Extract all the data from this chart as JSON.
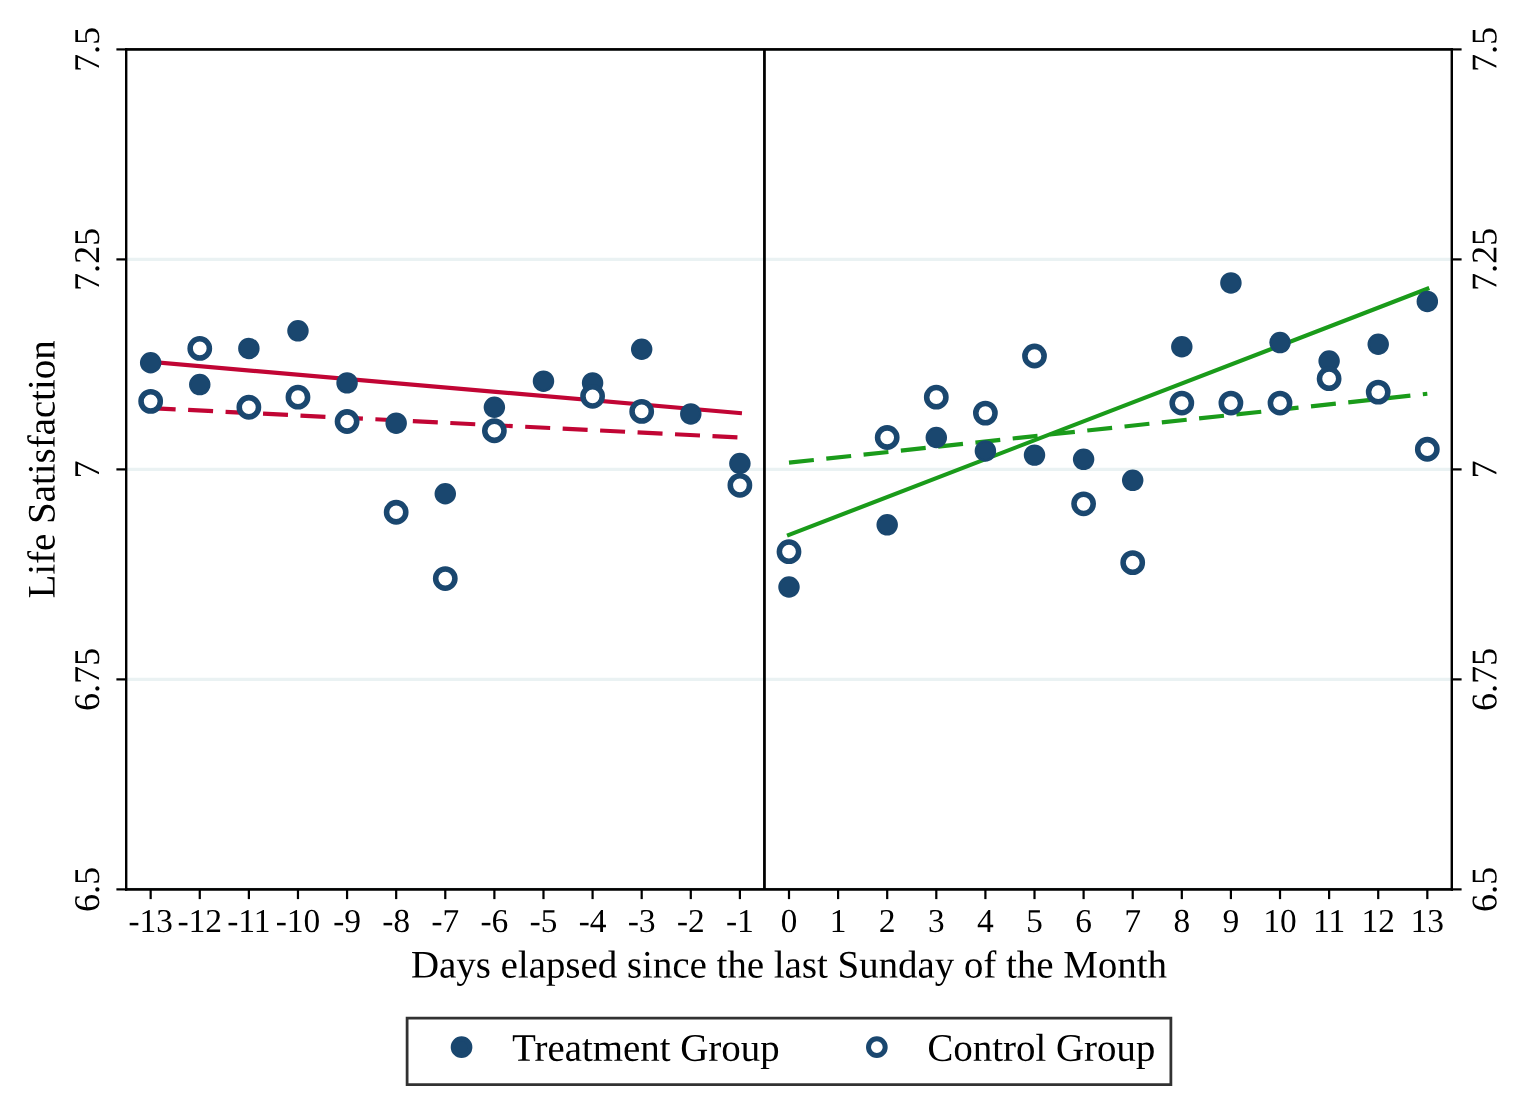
{
  "chart_data": {
    "type": "scatter",
    "xlabel": "Days elapsed since the last Sunday of the Month",
    "ylabel": "Life Satisfaction",
    "x": [
      -13,
      -12,
      -11,
      -10,
      -9,
      -8,
      -7,
      -6,
      -5,
      -4,
      -3,
      -2,
      -1,
      0,
      1,
      2,
      3,
      4,
      5,
      6,
      7,
      8,
      9,
      10,
      11,
      12,
      13
    ],
    "series": [
      {
        "name": "Treatment Group",
        "color": "#1a476f",
        "marker": "circle",
        "values": [
          7.127,
          7.101,
          7.144,
          7.165,
          7.103,
          7.055,
          6.971,
          7.074,
          7.105,
          7.103,
          7.143,
          7.066,
          7.007,
          6.86,
          null,
          6.934,
          7.038,
          7.022,
          7.017,
          7.012,
          6.987,
          7.146,
          7.222,
          7.151,
          7.129,
          7.149,
          7.2
        ]
      },
      {
        "name": "Control Group",
        "color": "#1a476f",
        "marker": "circle",
        "values": [
          7.081,
          7.144,
          7.074,
          7.086,
          7.057,
          6.949,
          6.87,
          7.046,
          null,
          7.087,
          7.069,
          null,
          6.981,
          6.902,
          null,
          7.038,
          7.086,
          7.067,
          7.135,
          6.959,
          6.889,
          7.079,
          7.079,
          7.079,
          7.108,
          7.092,
          7.024
        ]
      },
      {
        "type": "line",
        "color": "#c10534",
        "line_style": "solid",
        "x": [
          -13,
          -1
        ],
        "values": [
          7.128,
          7.067
        ]
      },
      {
        "type": "line",
        "color": "#c10534",
        "line_style": "dashed",
        "x": [
          -13,
          -1
        ],
        "values": [
          7.073,
          7.038
        ]
      },
      {
        "type": "line",
        "color": "#1a9b1a",
        "line_style": "solid",
        "x": [
          0,
          13
        ],
        "values": [
          6.922,
          7.215
        ]
      },
      {
        "type": "line",
        "color": "#1a9b1a",
        "line_style": "dashed",
        "x": [
          0,
          13
        ],
        "values": [
          7.008,
          7.09
        ]
      }
    ],
    "xlim": [
      -13.5,
      13.5
    ],
    "xticks": [
      -13,
      -12,
      -11,
      -10,
      -9,
      -8,
      -7,
      -6,
      -5,
      -4,
      -3,
      -2,
      -1,
      0,
      1,
      2,
      3,
      4,
      5,
      6,
      7,
      8,
      9,
      10,
      11,
      12,
      13
    ],
    "ylim": [
      6.5,
      7.5
    ],
    "yticks": [
      6.5,
      6.75,
      7,
      7.25,
      7.5
    ],
    "y2lim": [
      6.5,
      7.5
    ],
    "y2ticks": [
      6.5,
      6.75,
      7,
      7.25,
      7.5
    ],
    "ref_lines": [
      {
        "axis": "x",
        "value": -0.5,
        "color": "#000000"
      }
    ],
    "grid": "y",
    "legend": "bottom"
  }
}
